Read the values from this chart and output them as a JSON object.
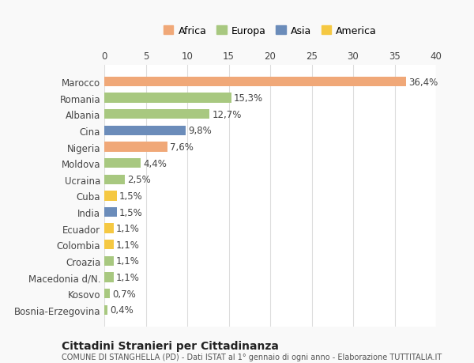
{
  "categories": [
    "Bosnia-Erzegovina",
    "Kosovo",
    "Macedonia d/N.",
    "Croazia",
    "Colombia",
    "Ecuador",
    "India",
    "Cuba",
    "Ucraina",
    "Moldova",
    "Nigeria",
    "Cina",
    "Albania",
    "Romania",
    "Marocco"
  ],
  "values": [
    0.4,
    0.7,
    1.1,
    1.1,
    1.1,
    1.1,
    1.5,
    1.5,
    2.5,
    4.4,
    7.6,
    9.8,
    12.7,
    15.3,
    36.4
  ],
  "labels": [
    "0,4%",
    "0,7%",
    "1,1%",
    "1,1%",
    "1,1%",
    "1,1%",
    "1,5%",
    "1,5%",
    "2,5%",
    "4,4%",
    "7,6%",
    "9,8%",
    "12,7%",
    "15,3%",
    "36,4%"
  ],
  "colors": [
    "#a8c880",
    "#a8c880",
    "#a8c880",
    "#a8c880",
    "#f5c842",
    "#f5c842",
    "#6b8cba",
    "#f5c842",
    "#a8c880",
    "#a8c880",
    "#f0a878",
    "#6b8cba",
    "#a8c880",
    "#a8c880",
    "#f0a878"
  ],
  "legend_labels": [
    "Africa",
    "Europa",
    "Asia",
    "America"
  ],
  "legend_colors": [
    "#f0a878",
    "#a8c880",
    "#6b8cba",
    "#f5c842"
  ],
  "title1": "Cittadini Stranieri per Cittadinanza",
  "title2": "COMUNE DI STANGHELLA (PD) - Dati ISTAT al 1° gennaio di ogni anno - Elaborazione TUTTITALIA.IT",
  "xlim": [
    0,
    40
  ],
  "xticks": [
    0,
    5,
    10,
    15,
    20,
    25,
    30,
    35,
    40
  ],
  "background_color": "#f9f9f9",
  "bar_background": "#ffffff",
  "grid_color": "#dddddd",
  "label_fontsize": 8.5,
  "tick_fontsize": 8.5
}
